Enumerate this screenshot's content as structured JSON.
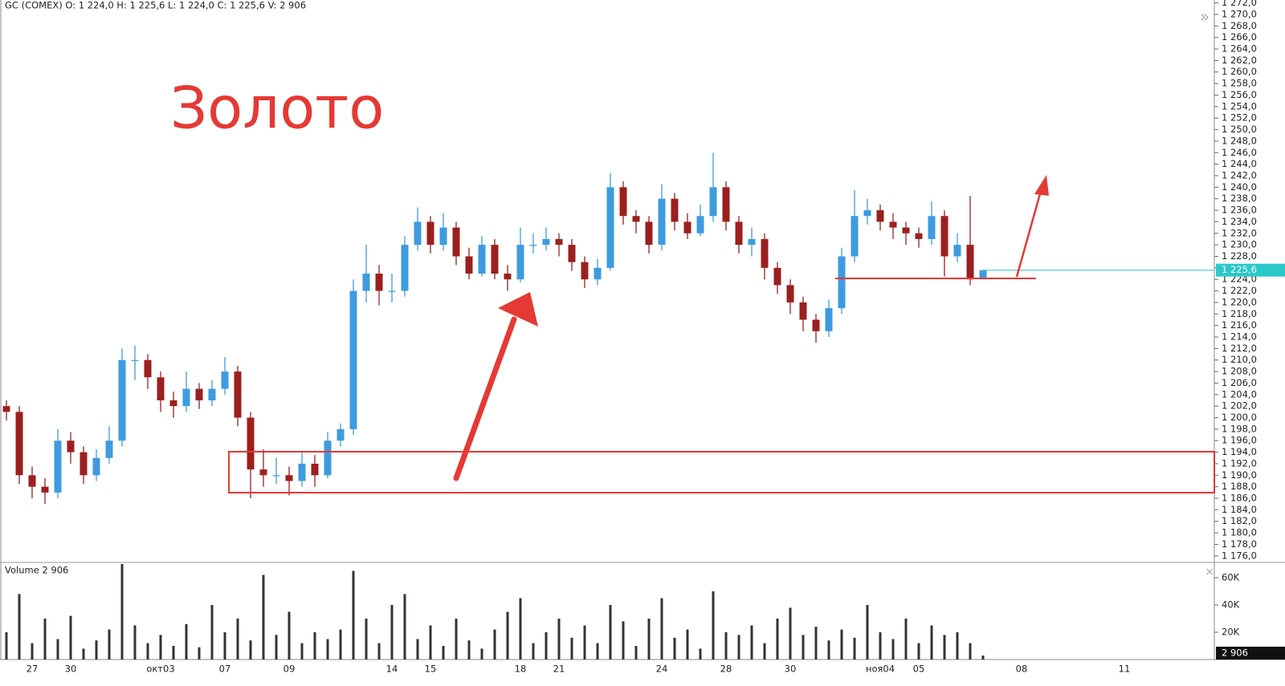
{
  "chart_data": [
    {
      "type": "candlestick",
      "title": "Золото",
      "subtitle": "GC (COMEX) O: 1 224,0  H: 1 225,6  L: 1 224,0  C: 1 225,6  V: 2 906",
      "up_color": "#3d9be0",
      "down_color": "#9c1f1f",
      "last_color": "#2bc8c8",
      "last_label": "1 225,6",
      "grid": false,
      "ylim": [
        1175,
        1272.5
      ],
      "yticks": [
        {
          "value": 1176,
          "label": "1 176,0"
        },
        {
          "value": 1178,
          "label": "1 178,0"
        },
        {
          "value": 1180,
          "label": "1 180,0"
        },
        {
          "value": 1182,
          "label": "1 182,0"
        },
        {
          "value": 1184,
          "label": "1 184,0"
        },
        {
          "value": 1186,
          "label": "1 186,0"
        },
        {
          "value": 1188,
          "label": "1 188,0"
        },
        {
          "value": 1190,
          "label": "1 190,0"
        },
        {
          "value": 1192,
          "label": "1 192,0"
        },
        {
          "value": 1194,
          "label": "1 194,0"
        },
        {
          "value": 1196,
          "label": "1 196,0"
        },
        {
          "value": 1198,
          "label": "1 198,0"
        },
        {
          "value": 1200,
          "label": "1 200,0"
        },
        {
          "value": 1202,
          "label": "1 202,0"
        },
        {
          "value": 1204,
          "label": "1 204,0"
        },
        {
          "value": 1206,
          "label": "1 206,0"
        },
        {
          "value": 1208,
          "label": "1 208,0"
        },
        {
          "value": 1210,
          "label": "1 210,0"
        },
        {
          "value": 1212,
          "label": "1 212,0"
        },
        {
          "value": 1214,
          "label": "1 214,0"
        },
        {
          "value": 1216,
          "label": "1 216,0"
        },
        {
          "value": 1218,
          "label": "1 218,0"
        },
        {
          "value": 1220,
          "label": "1 220,0"
        },
        {
          "value": 1222,
          "label": "1 222,0"
        },
        {
          "value": 1224,
          "label": "1 224,0"
        },
        {
          "value": 1226,
          "label": "1 226,0"
        },
        {
          "value": 1228,
          "label": "1 228,0"
        },
        {
          "value": 1230,
          "label": "1 230,0"
        },
        {
          "value": 1232,
          "label": "1 232,0"
        },
        {
          "value": 1234,
          "label": "1 234,0"
        },
        {
          "value": 1236,
          "label": "1 236,0"
        },
        {
          "value": 1238,
          "label": "1 238,0"
        },
        {
          "value": 1240,
          "label": "1 240,0"
        },
        {
          "value": 1242,
          "label": "1 242,0"
        },
        {
          "value": 1244,
          "label": "1 244,0"
        },
        {
          "value": 1246,
          "label": "1 246,0"
        },
        {
          "value": 1248,
          "label": "1 248,0"
        },
        {
          "value": 1250,
          "label": "1 250,0"
        },
        {
          "value": 1252,
          "label": "1 252,0"
        },
        {
          "value": 1254,
          "label": "1 254,0"
        },
        {
          "value": 1256,
          "label": "1 256,0"
        },
        {
          "value": 1258,
          "label": "1 258,0"
        },
        {
          "value": 1260,
          "label": "1 260,0"
        },
        {
          "value": 1262,
          "label": "1 262,0"
        },
        {
          "value": 1264,
          "label": "1 264,0"
        },
        {
          "value": 1266,
          "label": "1 266,0"
        },
        {
          "value": 1268,
          "label": "1 268,0"
        },
        {
          "value": 1270,
          "label": "1 270,0"
        },
        {
          "value": 1272,
          "label": "1 272,0"
        }
      ],
      "categories": [
        null,
        null,
        "27",
        null,
        null,
        "30",
        null,
        null,
        null,
        null,
        null,
        null,
        "окт03",
        null,
        null,
        null,
        null,
        "07",
        null,
        null,
        null,
        null,
        "09",
        null,
        null,
        null,
        null,
        null,
        null,
        null,
        "14",
        null,
        null,
        "15",
        null,
        null,
        null,
        null,
        null,
        null,
        "18",
        null,
        null,
        "21",
        null,
        null,
        null,
        null,
        null,
        null,
        null,
        "24",
        null,
        null,
        null,
        null,
        "28",
        null,
        null,
        null,
        null,
        "30",
        null,
        null,
        null,
        null,
        null,
        null,
        "ноя04",
        null,
        null,
        "05",
        null,
        null,
        null,
        null,
        null,
        null,
        null,
        "08",
        null,
        null,
        null,
        null,
        null,
        null,
        null,
        "11",
        null,
        null,
        null,
        null,
        null,
        null
      ],
      "open": [
        1202,
        1201,
        1190,
        1188,
        1187,
        1196,
        1194,
        1190,
        1193,
        1196,
        1210,
        1210,
        1207,
        1203,
        1202,
        1205,
        1203,
        1205,
        1208,
        1200,
        1191,
        1190,
        1190,
        1189,
        1192,
        1190,
        1196,
        1198,
        1222,
        1225,
        1222,
        1222,
        1230,
        1234,
        1230,
        1233,
        1228,
        1225,
        1230,
        1225,
        1224,
        1230,
        1230,
        1231,
        1230,
        1227,
        1224,
        1226,
        1240,
        1235,
        1234,
        1230,
        1238,
        1234,
        1232,
        1235,
        1240,
        1234,
        1230,
        1231,
        1226,
        1223,
        1220,
        1217,
        1215,
        1219,
        1228,
        1235,
        1236,
        1234,
        1233,
        1232,
        1231,
        1235,
        1228,
        1230,
        1224,
        null,
        null,
        null,
        null,
        null,
        null,
        null,
        null,
        null,
        null,
        null,
        null,
        null,
        null,
        null,
        null,
        null
      ],
      "high": [
        1203,
        1202,
        1191.5,
        1189.5,
        1198,
        1197.5,
        1195,
        1194.5,
        1198.5,
        1212,
        1212.5,
        1211,
        1208,
        1204.5,
        1208,
        1206,
        1206.5,
        1210.5,
        1209,
        1201,
        1194.5,
        1193,
        1191.5,
        1194,
        1193.5,
        1197.5,
        1199,
        1224,
        1230,
        1226.5,
        1225,
        1231.5,
        1236.5,
        1235,
        1235.5,
        1234,
        1229.5,
        1231.5,
        1231,
        1226.5,
        1233,
        1232,
        1233,
        1232,
        1231,
        1228,
        1227.5,
        1242.5,
        1241,
        1236,
        1235,
        1240.5,
        1239,
        1235.5,
        1237,
        1246,
        1241,
        1235,
        1233,
        1232,
        1227,
        1224,
        1221,
        1218,
        1220.5,
        1229.5,
        1239.5,
        1238,
        1237,
        1235.5,
        1234,
        1233,
        1237.5,
        1236,
        1232,
        1238.5,
        1225.6,
        null,
        null,
        null,
        null,
        null,
        null,
        null,
        null,
        null,
        null,
        null,
        null,
        null,
        null,
        null,
        null,
        null
      ],
      "low": [
        1199.5,
        1188.5,
        1186,
        1185,
        1186,
        1192,
        1188.5,
        1189,
        1192,
        1195,
        1206.5,
        1205,
        1201,
        1200,
        1201,
        1201.5,
        1202,
        1204,
        1198.5,
        1186,
        1188,
        1188.5,
        1186.5,
        1188,
        1188,
        1189.5,
        1195,
        1197,
        1220,
        1219.5,
        1220,
        1221,
        1229,
        1228.5,
        1229,
        1226.5,
        1224,
        1224.5,
        1224,
        1222,
        1223.5,
        1228.5,
        1229,
        1228,
        1225.5,
        1222.5,
        1223,
        1225.5,
        1233.5,
        1232,
        1228.5,
        1229,
        1232.5,
        1231,
        1231.5,
        1234,
        1232.5,
        1228.5,
        1228,
        1224,
        1221.5,
        1218,
        1215,
        1213,
        1214,
        1218,
        1227,
        1233.5,
        1232.5,
        1231,
        1230,
        1229.5,
        1230,
        1224.5,
        1227,
        1223,
        1224,
        null,
        null,
        null,
        null,
        null,
        null,
        null,
        null,
        null,
        null,
        null,
        null,
        null,
        null,
        null,
        null,
        null
      ],
      "close": [
        1201,
        1190,
        1188,
        1187,
        1196,
        1194,
        1190,
        1193,
        1196,
        1210,
        1210,
        1207,
        1203,
        1202,
        1205,
        1203,
        1205,
        1208,
        1200,
        1191,
        1190,
        1190,
        1189,
        1192,
        1190,
        1196,
        1198,
        1222,
        1225,
        1222,
        1222,
        1230,
        1234,
        1230,
        1233,
        1228,
        1225,
        1230,
        1225,
        1224,
        1230,
        1230,
        1231,
        1230,
        1227,
        1224,
        1226,
        1240,
        1235,
        1234,
        1230,
        1238,
        1234,
        1232,
        1235,
        1240,
        1234,
        1230,
        1231,
        1226,
        1223,
        1220,
        1217,
        1215,
        1219,
        1228,
        1235,
        1236,
        1234,
        1233,
        1232,
        1231,
        1235,
        1228,
        1230,
        1224,
        1225.6,
        null,
        null,
        null,
        null,
        null,
        null,
        null,
        null,
        null,
        null,
        null,
        null,
        null,
        null,
        null,
        null,
        null
      ]
    },
    {
      "type": "bar",
      "title": "Volume 2 906",
      "color": "#333333",
      "last_label": "2 906",
      "ylim": [
        0,
        70000
      ],
      "yticks": [
        {
          "value": 20000,
          "label": "20K"
        },
        {
          "value": 40000,
          "label": "40K"
        },
        {
          "value": 60000,
          "label": "60K"
        }
      ],
      "values": [
        20000,
        48000,
        12000,
        30000,
        15000,
        32000,
        8000,
        14000,
        22000,
        70000,
        25000,
        12000,
        18000,
        10000,
        26000,
        9000,
        40000,
        20000,
        30000,
        14000,
        62000,
        18000,
        35000,
        12000,
        20000,
        15000,
        22000,
        65000,
        30000,
        12000,
        40000,
        48000,
        15000,
        25000,
        10000,
        30000,
        14000,
        8000,
        22000,
        35000,
        45000,
        12000,
        20000,
        30000,
        16000,
        25000,
        12000,
        40000,
        28000,
        10000,
        30000,
        45000,
        16000,
        22000,
        8000,
        50000,
        20000,
        18000,
        25000,
        12000,
        30000,
        38000,
        18000,
        24000,
        14000,
        22000,
        16000,
        40000,
        20000,
        15000,
        30000,
        12000,
        25000,
        18000,
        20000,
        12000,
        2906,
        null,
        null,
        null,
        null,
        null,
        null,
        null,
        null,
        null,
        null,
        null,
        null,
        null,
        null,
        null,
        null,
        null
      ]
    }
  ]
}
